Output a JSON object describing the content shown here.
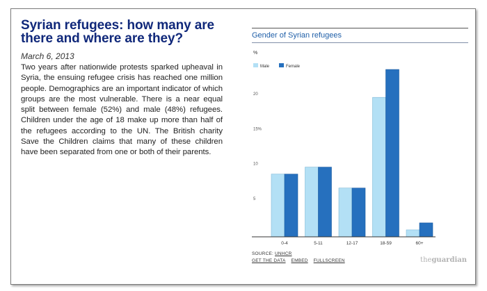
{
  "article": {
    "headline": "Syrian refugees: how many are there and where are they?",
    "date": "March 6, 2013",
    "body": "Two years after nationwide protests sparked upheaval in Syria, the ensuing refugee crisis has reached one million people. Demographics are an important indicator of which groups are the most vulnerable. There is a near equal split between female (52%) and male (48%) refugees. Children under the age of 18 make up more than half of the refugees according to the UN. The British charity Save the Children claims that many of these children have been separated from one or both of their parents."
  },
  "chart_data": {
    "type": "bar",
    "title": "Gender of Syrian refugees",
    "ylabel": "%",
    "categories": [
      "0-4",
      "5-11",
      "12-17",
      "18-59",
      "60+"
    ],
    "series": [
      {
        "name": "Male",
        "color": "#b3e0f5",
        "values": [
          9,
          10,
          7,
          20,
          1
        ]
      },
      {
        "name": "Female",
        "color": "#2670be",
        "values": [
          9,
          10,
          7,
          24,
          2
        ]
      }
    ],
    "yticks": [
      {
        "value": 5,
        "label": "5"
      },
      {
        "value": 10,
        "label": "10"
      },
      {
        "value": 15,
        "label": "15%"
      },
      {
        "value": 20,
        "label": "20"
      }
    ],
    "ylim": [
      0,
      25
    ],
    "legend_position": "top-left",
    "grid": false
  },
  "footer": {
    "source_label": "SOURCE:",
    "source_name": "UNHCR",
    "links": [
      "GET THE DATA",
      "EMBED",
      "FULLSCREEN"
    ],
    "brand_prefix": "the",
    "brand_suffix": "guardian"
  }
}
